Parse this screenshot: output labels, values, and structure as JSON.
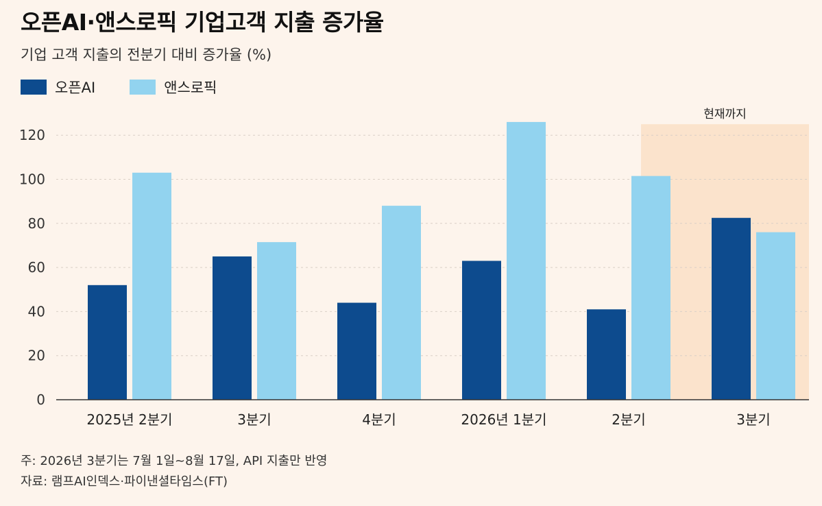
{
  "title": "오픈AI·앤스로픽 기업고객 지출 증가율",
  "subtitle": "기업 고객 지출의 전분기 대비 증가율 (%)",
  "legend": [
    {
      "label": "오픈AI",
      "color": "#0d4b8e"
    },
    {
      "label": "앤스로픽",
      "color": "#92d3ef"
    }
  ],
  "highlight_label": "현재까지",
  "highlight_color": "#fbe3cc",
  "note": "주: 2026년 3분기는 7월 1일~8월 17일, API 지출만 반영",
  "source": "자료: 램프AI인덱스·파이낸셜타임스(FT)",
  "chart_data": {
    "type": "bar",
    "title": "오픈AI·앤스로픽 기업고객 지출 증가율",
    "subtitle": "기업 고객 지출의 전분기 대비 증가율 (%)",
    "categories": [
      "2025년 2분기",
      "3분기",
      "4분기",
      "2026년 1분기",
      "2분기",
      "3분기"
    ],
    "series": [
      {
        "name": "오픈AI",
        "color": "#0d4b8e",
        "values": [
          52,
          65,
          44,
          63,
          41,
          82.5
        ]
      },
      {
        "name": "앤스로픽",
        "color": "#92d3ef",
        "values": [
          103,
          71.5,
          88,
          126,
          101.5,
          76
        ]
      }
    ],
    "ylim": [
      0,
      130
    ],
    "yticks": [
      0,
      20,
      40,
      60,
      80,
      100,
      120
    ],
    "grid": true,
    "highlight_category_index": 5,
    "legend_position": "top-left"
  }
}
